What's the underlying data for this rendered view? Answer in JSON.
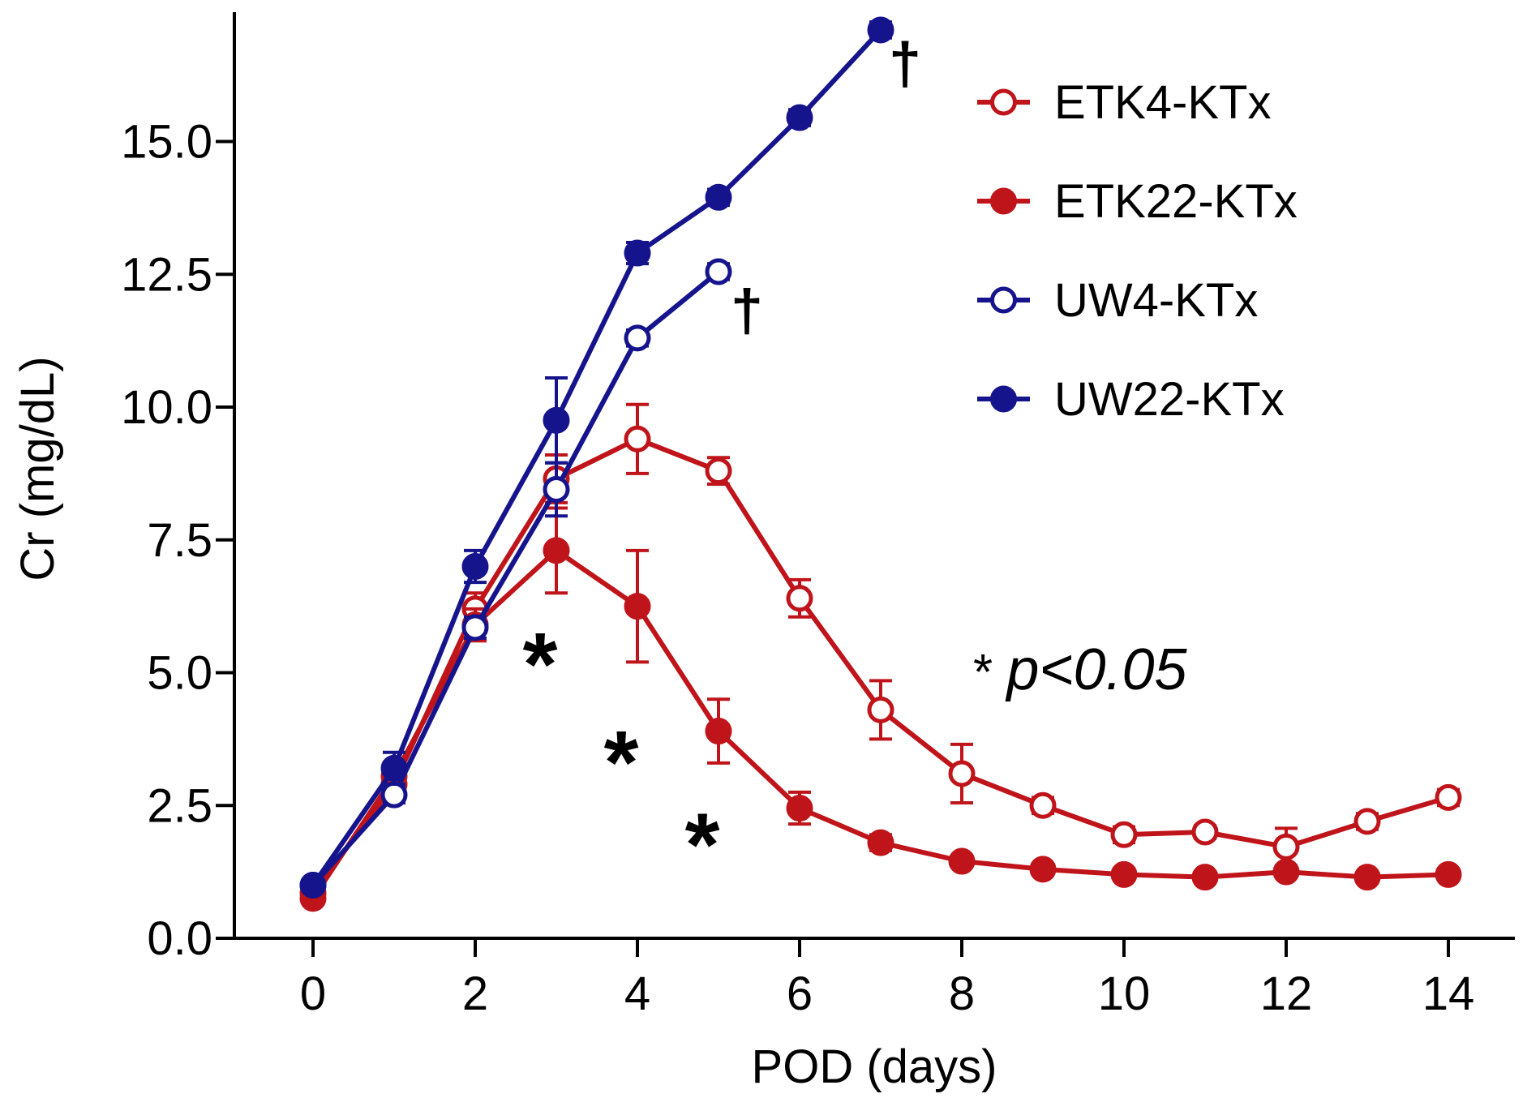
{
  "chart_data": {
    "type": "line",
    "title": "",
    "xlabel": "POD (days)",
    "ylabel": "Cr (mg/dL)",
    "xlim": [
      -1,
      14.9
    ],
    "ylim": [
      0,
      17.7
    ],
    "x_ticks": [
      0,
      2,
      4,
      6,
      8,
      10,
      12,
      14
    ],
    "x_tick_labels": [
      "0",
      "2",
      "4",
      "6",
      "8",
      "10",
      "12",
      "14"
    ],
    "y_ticks": [
      0,
      2.5,
      5,
      7.5,
      10,
      12.5,
      15
    ],
    "y_tick_labels": [
      "0.0",
      "2.5",
      "5.0",
      "7.5",
      "10.0",
      "12.5",
      "15.0"
    ],
    "colors": {
      "etk": "#c0141b",
      "uw": "#16148c"
    },
    "legend_position": "top-right",
    "series": [
      {
        "name": "ETK4-KTx",
        "color": "#c0141b",
        "marker": "open",
        "x": [
          0,
          1,
          2,
          3,
          4,
          5,
          6,
          7,
          8,
          9,
          10,
          11,
          12,
          13,
          14
        ],
        "values": [
          0.85,
          2.9,
          6.2,
          8.65,
          9.4,
          8.8,
          6.4,
          4.3,
          3.1,
          2.5,
          1.95,
          2.0,
          1.72,
          2.2,
          2.65
        ],
        "error": [
          0.1,
          0.15,
          0.3,
          0.45,
          0.65,
          0.25,
          0.35,
          0.55,
          0.55,
          0.15,
          0.15,
          0.12,
          0.35,
          0.15,
          0.15
        ]
      },
      {
        "name": "ETK22-KTx",
        "color": "#c0141b",
        "marker": "filled",
        "x": [
          0,
          1,
          2,
          3,
          4,
          5,
          6,
          7,
          8,
          9,
          10,
          11,
          12,
          13,
          14
        ],
        "values": [
          0.75,
          3.05,
          5.9,
          7.3,
          6.25,
          3.9,
          2.45,
          1.8,
          1.45,
          1.3,
          1.2,
          1.15,
          1.25,
          1.15,
          1.2
        ],
        "error": [
          0.1,
          0.2,
          0.3,
          0.8,
          1.05,
          0.6,
          0.3,
          0.15,
          0.1,
          0.1,
          0.1,
          0.1,
          0.1,
          0.1,
          0.1
        ]
      },
      {
        "name": "UW4-KTx",
        "color": "#16148c",
        "marker": "open",
        "x": [
          0,
          1,
          2,
          3,
          4,
          5
        ],
        "values": [
          1.0,
          2.7,
          5.85,
          8.45,
          11.3,
          12.55
        ],
        "error": [
          0.1,
          0.15,
          0.2,
          0.5,
          0.15,
          0.15
        ]
      },
      {
        "name": "UW22-KTx",
        "color": "#16148c",
        "marker": "filled",
        "x": [
          0,
          1,
          2,
          3,
          4,
          5,
          6,
          7
        ],
        "values": [
          1.0,
          3.2,
          7.0,
          9.75,
          12.9,
          13.95,
          15.45,
          17.1
        ],
        "error": [
          0.1,
          0.3,
          0.3,
          0.8,
          0.2,
          0.15,
          0.15,
          0.15
        ]
      }
    ],
    "annotations": {
      "significance_markers": [
        {
          "text": "*",
          "x": 2.8,
          "y": 5.5
        },
        {
          "text": "*",
          "x": 3.8,
          "y": 3.65
        },
        {
          "text": "*",
          "x": 4.8,
          "y": 2.1
        }
      ],
      "death_markers": [
        {
          "text": "†",
          "x": 7.3,
          "y": 16.7
        },
        {
          "text": "†",
          "x": 5.35,
          "y": 12.05
        }
      ],
      "pvalue": {
        "star": "*",
        "text": "p<0.05"
      }
    }
  }
}
